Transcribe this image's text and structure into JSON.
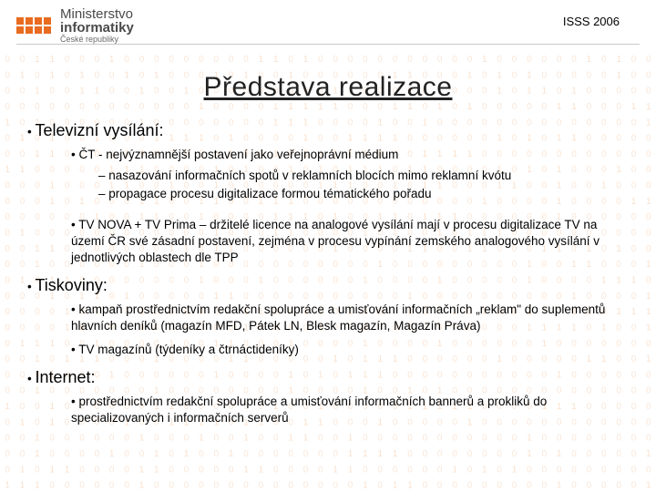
{
  "header": {
    "ministry_line1": "Ministerstvo",
    "ministry_line2": "informatiky",
    "ministry_line3": "České republiky",
    "conference": "ISSS 2006",
    "logo_color": "#e96b1f"
  },
  "title": "Představa realizace",
  "sections": [
    {
      "heading": "Televizní vysílání:",
      "items": [
        {
          "text": "ČT - nejvýznamnější postavení jako veřejnoprávní médium",
          "sub": [
            "nasazování informačních spotů v reklamních blocích mimo reklamní kvótu",
            "propagace procesu digitalizace formou tématického pořadu"
          ]
        },
        {
          "text": "TV NOVA + TV Prima – držitelé licence na analogové vysílání mají v procesu digitalizace TV na území ČR své zásadní postavení, zejména v procesu vypínání zemského analogového vysílání v jednotlivých oblastech dle TPP"
        }
      ]
    },
    {
      "heading": "Tiskoviny:",
      "items": [
        {
          "text": "kampaň prostřednictvím redakční spolupráce a umisťování informačních „reklam\" do suplementů hlavních deníků (magazín MFD, Pátek LN, Blesk magazín, Magazín Práva)"
        },
        {
          "text": "TV magazínů (týdeníky a čtrnáctideníky)"
        }
      ]
    },
    {
      "heading": "Internet:",
      "items": [
        {
          "text": "prostřednictvím redakční spolupráce a umisťování informačních bannerů a prokliků do specializovaných i informačních serverů"
        }
      ]
    }
  ],
  "pattern": {
    "dot_color": "#f2b98c",
    "one_color": "#f0a86f",
    "bg": "#ffffff"
  }
}
